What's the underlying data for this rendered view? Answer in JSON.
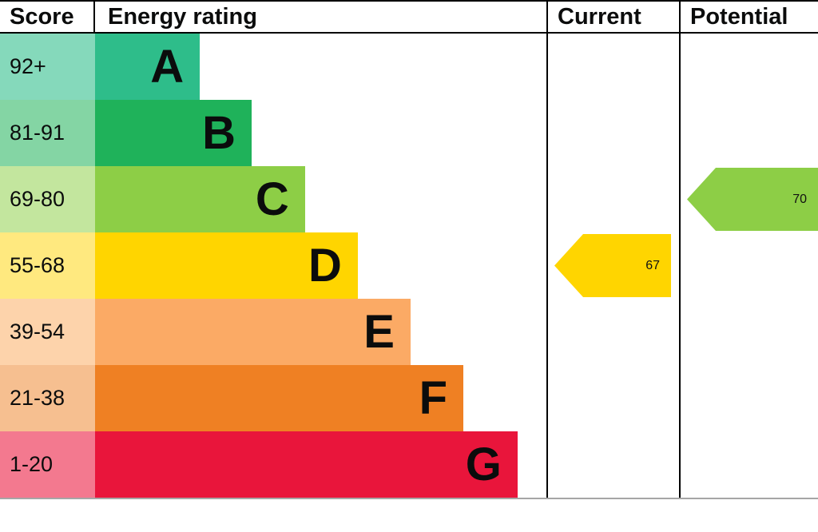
{
  "header": {
    "score": "Score",
    "rating": "Energy rating",
    "current": "Current",
    "potential": "Potential"
  },
  "chart_data": {
    "type": "bar",
    "title": "Energy rating",
    "orientation": "horizontal",
    "bands": [
      {
        "letter": "A",
        "score": "92+",
        "color": "#2ebd8a",
        "tint": "#85d9bb",
        "width_pct": 23.2
      },
      {
        "letter": "B",
        "score": "81-91",
        "color": "#1fb25a",
        "tint": "#84d5a4",
        "width_pct": 34.7
      },
      {
        "letter": "C",
        "score": "69-80",
        "color": "#8dce46",
        "tint": "#c3e69e",
        "width_pct": 46.5
      },
      {
        "letter": "D",
        "score": "55-68",
        "color": "#ffd500",
        "tint": "#ffe97f",
        "width_pct": 58.2
      },
      {
        "letter": "E",
        "score": "39-54",
        "color": "#fbaa65",
        "tint": "#fdd3ab",
        "width_pct": 69.9
      },
      {
        "letter": "F",
        "score": "21-38",
        "color": "#ef8023",
        "tint": "#f6bf90",
        "width_pct": 81.6
      },
      {
        "letter": "G",
        "score": "1-20",
        "color": "#e9153b",
        "tint": "#f3798f",
        "width_pct": 93.6
      }
    ],
    "current": {
      "label": "Current",
      "value": "67",
      "band": "D",
      "band_index": 3,
      "color": "#ffd500"
    },
    "potential": {
      "label": "Potential",
      "value": "70",
      "band": "C",
      "band_index": 2,
      "color": "#8dce46"
    }
  }
}
